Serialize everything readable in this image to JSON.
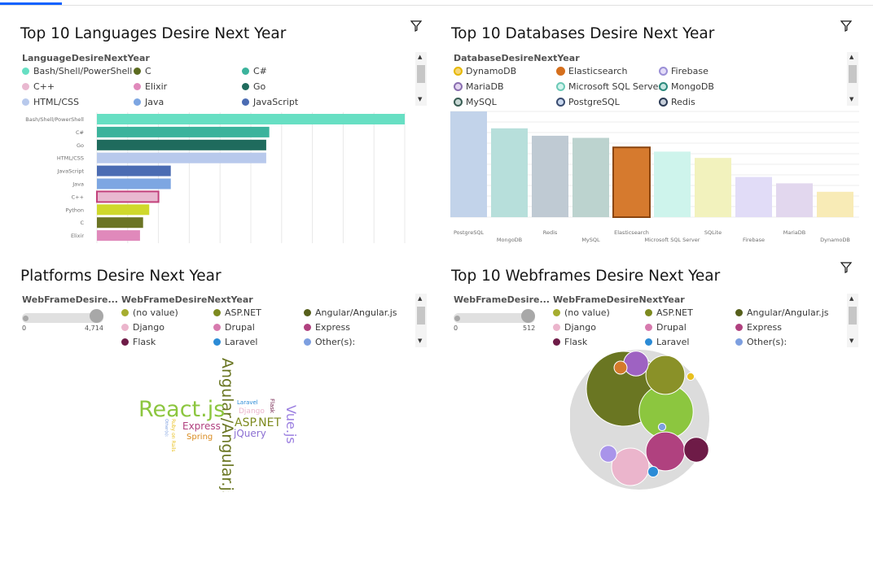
{
  "panels": {
    "languages": {
      "title": "Top 10 Languages Desire Next Year",
      "legend_title": "LanguageDesireNextYear",
      "legend": [
        {
          "label": "Bash/Shell/PowerShell",
          "color": "#67dfc3"
        },
        {
          "label": "C",
          "color": "#5c6b20"
        },
        {
          "label": "C#",
          "color": "#3bb39c"
        },
        {
          "label": "C++",
          "color": "#e9b8d0"
        },
        {
          "label": "Elixir",
          "color": "#e089bb"
        },
        {
          "label": "Go",
          "color": "#1f6b5d"
        },
        {
          "label": "HTML/CSS",
          "color": "#b8c9ec"
        },
        {
          "label": "Java",
          "color": "#7da6e2"
        },
        {
          "label": "JavaScript",
          "color": "#4b6cb3"
        }
      ]
    },
    "databases": {
      "title": "Top 10 Databases Desire Next Year",
      "legend_title": "DatabaseDesireNextYear",
      "legend": [
        {
          "label": "DynamoDB",
          "color": "#f5d67a",
          "border": "#e6b800"
        },
        {
          "label": "Elasticsearch",
          "color": "#d56f1d",
          "border": "#d56f1d"
        },
        {
          "label": "Firebase",
          "color": "#e3dcf8",
          "border": "#9b8fd6"
        },
        {
          "label": "MariaDB",
          "color": "#e3d5f0",
          "border": "#8a6fb0"
        },
        {
          "label": "Microsoft SQL Server",
          "color": "#d2f5ee",
          "border": "#6cc9b6"
        },
        {
          "label": "MongoDB",
          "color": "#c7e6e2",
          "border": "#2c8a7c"
        },
        {
          "label": "MySQL",
          "color": "#c8d8d5",
          "border": "#3a5e55"
        },
        {
          "label": "PostgreSQL",
          "color": "#c9d8ee",
          "border": "#3a4c70"
        },
        {
          "label": "Redis",
          "color": "#c7cfda",
          "border": "#2c3b55"
        }
      ]
    },
    "platforms": {
      "title": "Platforms Desire Next Year",
      "slider_label": "WebFrameDesire...",
      "slider_min": "0",
      "slider_max": "4,714",
      "legend_title": "WebFrameDesireNextYear",
      "legend": [
        {
          "label": "(no value)",
          "color": "#a6ad2f"
        },
        {
          "label": "ASP.NET",
          "color": "#7d8a1f"
        },
        {
          "label": "Angular/Angular.js",
          "color": "#565f1b"
        },
        {
          "label": "Django",
          "color": "#ebb5cc"
        },
        {
          "label": "Drupal",
          "color": "#d77aae"
        },
        {
          "label": "Express",
          "color": "#b0417f"
        },
        {
          "label": "Flask",
          "color": "#6e1b47"
        },
        {
          "label": "Laravel",
          "color": "#2b8bd6"
        },
        {
          "label": "Other(s):",
          "color": "#7d9fe0"
        }
      ],
      "words": [
        {
          "text": "Angular/Angular.js",
          "color": "#6a7622"
        },
        {
          "text": "React.js",
          "color": "#8cc63f"
        },
        {
          "text": "ASP.NET",
          "color": "#7d8a1f"
        },
        {
          "text": "Vue.js",
          "color": "#9b7fe0"
        },
        {
          "text": "Express",
          "color": "#b0417f"
        },
        {
          "text": "jQuery",
          "color": "#8b6fd2"
        },
        {
          "text": "Spring",
          "color": "#d98a1e"
        },
        {
          "text": "Django",
          "color": "#ebb5cc"
        },
        {
          "text": "Laravel",
          "color": "#2b8bd6"
        },
        {
          "text": "Flask",
          "color": "#6e1b47"
        },
        {
          "text": "Ruby on Rails",
          "color": "#e8c020"
        },
        {
          "text": "Other(s):",
          "color": "#7d9fe0"
        }
      ]
    },
    "webframes": {
      "title": "Top 10 Webframes Desire Next Year",
      "slider_label": "WebFrameDesire...",
      "slider_min": "0",
      "slider_max": "512",
      "legend_title": "WebFrameDesireNextYear",
      "legend": [
        {
          "label": "(no value)",
          "color": "#a6ad2f"
        },
        {
          "label": "ASP.NET",
          "color": "#7d8a1f"
        },
        {
          "label": "Angular/Angular.js",
          "color": "#565f1b"
        },
        {
          "label": "Django",
          "color": "#ebb5cc"
        },
        {
          "label": "Drupal",
          "color": "#d77aae"
        },
        {
          "label": "Express",
          "color": "#b0417f"
        },
        {
          "label": "Flask",
          "color": "#6e1b47"
        },
        {
          "label": "Laravel",
          "color": "#2b8bd6"
        },
        {
          "label": "Other(s):",
          "color": "#7d9fe0"
        }
      ]
    }
  },
  "chart_data": [
    {
      "type": "bar",
      "orientation": "horizontal",
      "categories": [
        "Bash/Shell/PowerShell",
        "C#",
        "Go",
        "HTML/CSS",
        "JavaScript",
        "Java",
        "C++",
        "Python",
        "C",
        "Elixir"
      ],
      "values": [
        100,
        56,
        55,
        55,
        24,
        24,
        20,
        17,
        15,
        14
      ],
      "colors": [
        "#67dfc3",
        "#3bb39c",
        "#1f6b5d",
        "#b8c9ec",
        "#4b6cb3",
        "#7da6e2",
        "#e9b8d0",
        "#cfd82c",
        "#6b7424",
        "#e089bb"
      ],
      "selected": "C++",
      "xlim": [
        0,
        100
      ],
      "grid": true
    },
    {
      "type": "bar",
      "categories": [
        "PostgreSQL",
        "MongoDB",
        "Redis",
        "MySQL",
        "Elasticsearch",
        "Microsoft SQL Server",
        "SQLite",
        "Firebase",
        "MariaDB",
        "DynamoDB"
      ],
      "values": [
        100,
        84,
        77,
        75,
        66,
        62,
        56,
        38,
        32,
        24
      ],
      "colors": [
        "#c2d3ea",
        "#b7dfdb",
        "#bfcad3",
        "#bcd3cf",
        "#d67a2e",
        "#cef4ec",
        "#f2f2bd",
        "#e1dcf7",
        "#e2d7ee",
        "#f8ebb6"
      ],
      "selected": "Elasticsearch",
      "ylim": [
        0,
        100
      ],
      "grid": true
    },
    {
      "type": "bubble",
      "labels": [
        "Angular/Angular.js",
        "React.js",
        "ASP.NET",
        "Express",
        "Django",
        "Flask",
        "Drupal",
        "Other(s):",
        "Laravel",
        "Spring",
        "(no value)",
        "Ruby on Rails"
      ],
      "values": [
        100,
        52,
        27,
        27,
        25,
        11,
        11,
        5,
        2,
        3,
        1,
        1
      ],
      "colors": [
        "#6a7622",
        "#8cc63f",
        "#8a9128",
        "#b0417f",
        "#ebb5cc",
        "#6e1b47",
        "#9e62c2",
        "#a994ea",
        "#2b8bd6",
        "#d47a2a",
        "#e8c020",
        "#7d9fe0"
      ]
    }
  ]
}
